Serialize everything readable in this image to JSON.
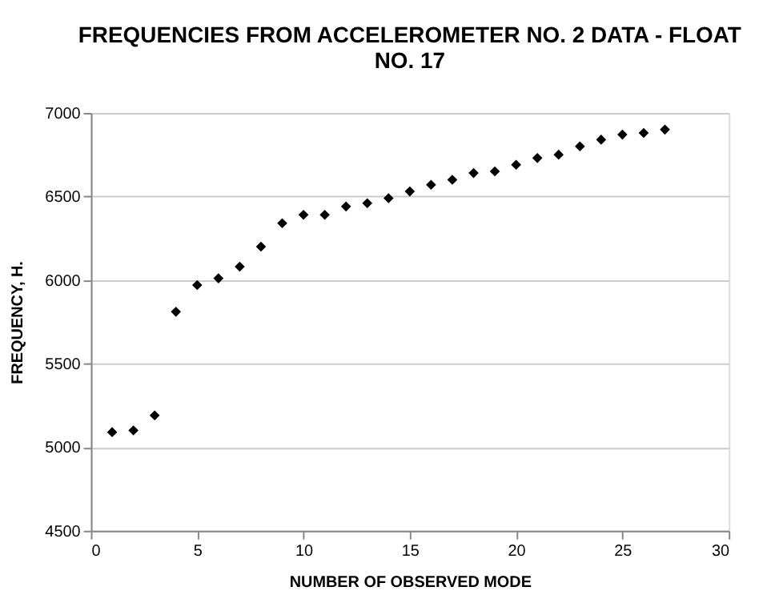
{
  "chart_data": {
    "type": "scatter",
    "title": "FREQUENCIES FROM ACCELEROMETER NO. 2 DATA - FLOAT NO. 17",
    "xlabel": "NUMBER OF OBSERVED MODE",
    "ylabel": "FREQUENCY, H.",
    "x": [
      1,
      2,
      3,
      4,
      5,
      6,
      7,
      8,
      9,
      10,
      11,
      12,
      13,
      14,
      15,
      16,
      17,
      18,
      19,
      20,
      21,
      22,
      23,
      24,
      25,
      26,
      27
    ],
    "series": [
      {
        "color": "#000000",
        "values": [
          5090,
          5100,
          5190,
          5810,
          5970,
          6010,
          6080,
          6200,
          6340,
          6390,
          6390,
          6440,
          6460,
          6490,
          6530,
          6570,
          6600,
          6640,
          6650,
          6690,
          6730,
          6750,
          6800,
          6840,
          6870,
          6880,
          6900
        ]
      }
    ],
    "xlim": [
      0,
      30
    ],
    "xticks": [
      0,
      5,
      10,
      15,
      20,
      25,
      30
    ],
    "ylim": [
      4500,
      7000
    ],
    "yticks": [
      4500,
      5000,
      5500,
      6000,
      6500,
      7000
    ],
    "grid": "y",
    "marker": "diamond",
    "legend": false
  }
}
